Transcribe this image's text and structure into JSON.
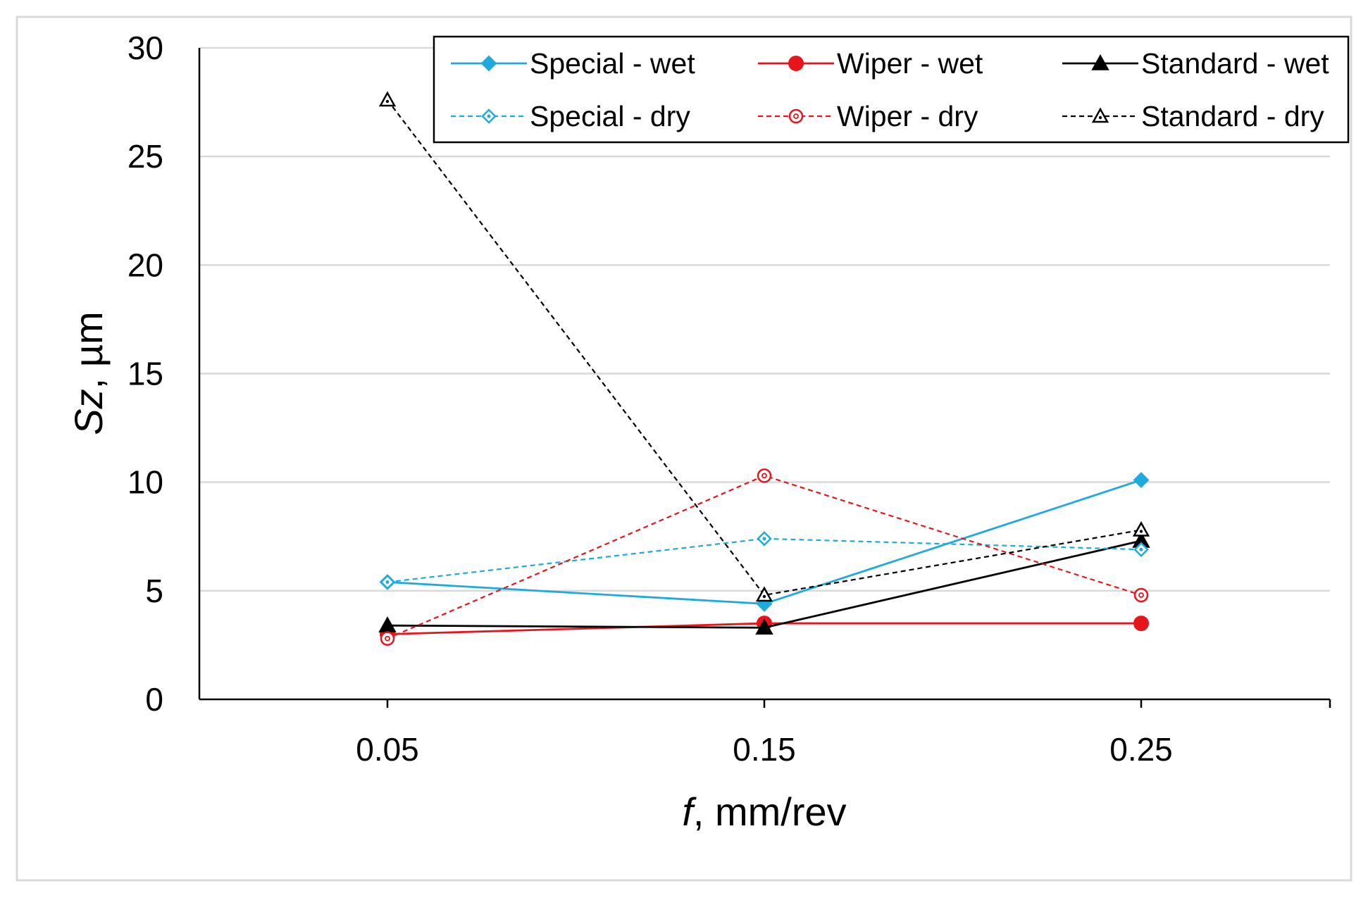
{
  "chart_data": {
    "type": "line",
    "title": "",
    "xlabel_italic": "f",
    "xlabel_rest": ", mm/rev",
    "ylabel_italic": "Sz",
    "ylabel_rest": ", µm",
    "categories": [
      "0.05",
      "0.15",
      "0.25"
    ],
    "ylim": [
      0,
      30
    ],
    "yticks": [
      0,
      5,
      10,
      15,
      20,
      25,
      30
    ],
    "grid": "horizontal",
    "legend_position": "top-right",
    "series": [
      {
        "name": "Special - wet",
        "values": [
          5.4,
          4.4,
          10.1
        ],
        "color": "#1eaadc",
        "dashed": false,
        "marker": "diamond-filled"
      },
      {
        "name": "Wiper - wet",
        "values": [
          3.0,
          3.5,
          3.5
        ],
        "color": "#e8141c",
        "dashed": false,
        "marker": "circle-filled"
      },
      {
        "name": "Standard - wet",
        "values": [
          3.4,
          3.3,
          7.3
        ],
        "color": "#000000",
        "dashed": false,
        "marker": "triangle-filled"
      },
      {
        "name": "Special - dry",
        "values": [
          5.4,
          7.4,
          6.9
        ],
        "color": "#1eaadc",
        "dashed": true,
        "marker": "diamond-open"
      },
      {
        "name": "Wiper - dry",
        "values": [
          2.8,
          10.3,
          4.8
        ],
        "color": "#e8141c",
        "dashed": true,
        "marker": "circle-open"
      },
      {
        "name": "Standard - dry",
        "values": [
          27.6,
          4.8,
          7.8
        ],
        "color": "#000000",
        "dashed": true,
        "marker": "triangle-open"
      }
    ]
  }
}
